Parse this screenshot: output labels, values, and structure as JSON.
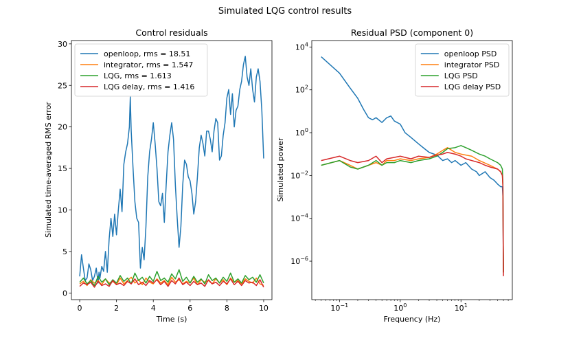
{
  "figure": {
    "suptitle": "Simulated LQG control results"
  },
  "chart_data": [
    {
      "type": "line",
      "title": "Control residuals",
      "xlabel": "Time (s)",
      "ylabel": "Simulated time-averaged RMS error",
      "xlim": [
        -0.45,
        10.45
      ],
      "ylim": [
        -0.8,
        30.4
      ],
      "xticks": [
        0,
        2,
        4,
        6,
        8,
        10
      ],
      "xtick_labels": [
        "0",
        "2",
        "4",
        "6",
        "8",
        "10"
      ],
      "yticks": [
        0,
        5,
        10,
        15,
        20,
        25,
        30
      ],
      "ytick_labels": [
        "0",
        "5",
        "10",
        "15",
        "20",
        "25",
        "30"
      ],
      "grid": false,
      "legend_position": "top-left",
      "colors": [
        "#1f77b4",
        "#ff7f0e",
        "#2ca02c",
        "#d62728"
      ],
      "series": [
        {
          "name": "openloop, rms = 18.51",
          "color": "#1f77b4",
          "x": [
            0,
            0.1,
            0.2,
            0.3,
            0.4,
            0.5,
            0.6,
            0.7,
            0.8,
            0.9,
            1.0,
            1.05,
            1.1,
            1.2,
            1.3,
            1.4,
            1.5,
            1.6,
            1.7,
            1.8,
            1.9,
            2.0,
            2.1,
            2.2,
            2.3,
            2.4,
            2.5,
            2.6,
            2.7,
            2.75,
            2.8,
            2.9,
            3.0,
            3.1,
            3.2,
            3.3,
            3.4,
            3.5,
            3.6,
            3.7,
            3.8,
            3.9,
            4.0,
            4.1,
            4.2,
            4.3,
            4.4,
            4.5,
            4.6,
            4.7,
            4.8,
            4.9,
            5.0,
            5.1,
            5.2,
            5.3,
            5.4,
            5.5,
            5.6,
            5.7,
            5.8,
            5.9,
            6.0,
            6.1,
            6.2,
            6.3,
            6.4,
            6.5,
            6.6,
            6.7,
            6.8,
            6.9,
            7.0,
            7.1,
            7.2,
            7.3,
            7.4,
            7.5,
            7.6,
            7.7,
            7.8,
            7.9,
            8.0,
            8.1,
            8.2,
            8.3,
            8.4,
            8.5,
            8.6,
            8.7,
            8.8,
            8.9,
            9.0,
            9.1,
            9.2,
            9.3,
            9.4,
            9.5,
            9.6,
            9.7,
            9.8,
            9.9,
            10.0
          ],
          "y": [
            2.0,
            4.6,
            3.0,
            1.5,
            1.8,
            3.5,
            2.8,
            1.5,
            2.0,
            3.0,
            1.2,
            2.5,
            1.8,
            3.2,
            2.6,
            5.0,
            2.5,
            6.5,
            9.0,
            6.8,
            9.5,
            7.0,
            10.0,
            12.5,
            9.8,
            15.5,
            17.0,
            18.0,
            20.0,
            23.6,
            19.5,
            15.0,
            11.0,
            9.0,
            8.5,
            3.0,
            5.5,
            4.0,
            8.0,
            14.0,
            17.0,
            18.5,
            20.5,
            18.0,
            15.0,
            11.0,
            10.5,
            12.0,
            8.5,
            13.0,
            17.0,
            19.0,
            20.5,
            18.5,
            13.0,
            9.0,
            5.5,
            8.0,
            13.0,
            16.0,
            15.5,
            14.0,
            13.5,
            12.0,
            9.5,
            11.0,
            14.0,
            17.5,
            19.0,
            18.0,
            16.5,
            19.5,
            19.5,
            18.5,
            17.0,
            19.5,
            21.0,
            20.5,
            16.0,
            16.5,
            19.0,
            20.5,
            23.5,
            24.5,
            21.5,
            24.0,
            20.0,
            22.0,
            22.5,
            24.5,
            25.5,
            27.5,
            28.5,
            26.0,
            25.0,
            27.0,
            24.5,
            23.0,
            26.0,
            27.0,
            25.5,
            22.0,
            16.2
          ]
        },
        {
          "name": "integrator, rms = 1.547",
          "color": "#ff7f0e",
          "x": [
            0,
            0.2,
            0.4,
            0.6,
            0.8,
            1.0,
            1.2,
            1.4,
            1.6,
            1.8,
            2.0,
            2.2,
            2.4,
            2.6,
            2.8,
            3.0,
            3.2,
            3.4,
            3.6,
            3.8,
            4.0,
            4.2,
            4.4,
            4.6,
            4.8,
            5.0,
            5.2,
            5.4,
            5.6,
            5.8,
            6.0,
            6.2,
            6.4,
            6.6,
            6.8,
            7.0,
            7.2,
            7.4,
            7.6,
            7.8,
            8.0,
            8.2,
            8.4,
            8.6,
            8.8,
            9.0,
            9.2,
            9.4,
            9.6,
            9.8,
            10.0
          ],
          "y": [
            1.1,
            1.4,
            0.9,
            1.6,
            1.2,
            1.5,
            1.0,
            1.7,
            1.2,
            1.4,
            1.0,
            1.8,
            1.1,
            1.5,
            1.9,
            1.2,
            1.6,
            1.0,
            1.8,
            1.3,
            1.1,
            1.7,
            1.2,
            1.5,
            1.0,
            1.9,
            1.3,
            1.6,
            1.1,
            1.4,
            1.2,
            1.8,
            1.0,
            1.6,
            1.3,
            1.5,
            1.1,
            1.7,
            1.2,
            1.6,
            1.0,
            1.8,
            1.3,
            1.5,
            1.1,
            1.7,
            1.4,
            1.2,
            1.8,
            1.1,
            0.9
          ]
        },
        {
          "name": "LQG, rms = 1.613",
          "color": "#2ca02c",
          "x": [
            0,
            0.2,
            0.4,
            0.6,
            0.8,
            1.0,
            1.2,
            1.4,
            1.6,
            1.8,
            2.0,
            2.2,
            2.4,
            2.6,
            2.8,
            3.0,
            3.2,
            3.4,
            3.6,
            3.8,
            4.0,
            4.2,
            4.4,
            4.6,
            4.8,
            5.0,
            5.2,
            5.4,
            5.6,
            5.8,
            6.0,
            6.2,
            6.4,
            6.6,
            6.8,
            7.0,
            7.2,
            7.4,
            7.6,
            7.8,
            8.0,
            8.2,
            8.4,
            8.6,
            8.8,
            9.0,
            9.2,
            9.4,
            9.6,
            9.8,
            10.0
          ],
          "y": [
            1.3,
            1.8,
            1.1,
            1.5,
            0.9,
            2.0,
            1.3,
            1.7,
            1.0,
            1.6,
            1.2,
            2.1,
            1.4,
            1.8,
            1.1,
            2.4,
            1.5,
            1.9,
            1.2,
            2.0,
            1.4,
            2.6,
            1.5,
            1.8,
            1.3,
            2.3,
            1.7,
            2.8,
            1.4,
            1.9,
            1.2,
            2.0,
            1.3,
            1.7,
            1.1,
            2.2,
            1.5,
            1.8,
            1.2,
            1.9,
            1.4,
            2.4,
            1.3,
            1.7,
            1.2,
            2.1,
            1.6,
            1.9,
            1.3,
            2.2,
            1.2
          ]
        },
        {
          "name": "LQG delay, rms = 1.416",
          "color": "#d62728",
          "x": [
            0,
            0.2,
            0.4,
            0.6,
            0.8,
            1.0,
            1.2,
            1.4,
            1.6,
            1.8,
            2.0,
            2.2,
            2.4,
            2.6,
            2.8,
            3.0,
            3.2,
            3.4,
            3.6,
            3.8,
            4.0,
            4.2,
            4.4,
            4.6,
            4.8,
            5.0,
            5.2,
            5.4,
            5.6,
            5.8,
            6.0,
            6.2,
            6.4,
            6.6,
            6.8,
            7.0,
            7.2,
            7.4,
            7.6,
            7.8,
            8.0,
            8.2,
            8.4,
            8.6,
            8.8,
            9.0,
            9.2,
            9.4,
            9.6,
            9.8,
            10.0
          ],
          "y": [
            0.8,
            1.2,
            1.0,
            1.3,
            0.7,
            1.4,
            0.9,
            1.1,
            0.8,
            1.5,
            1.0,
            1.2,
            0.9,
            1.4,
            1.1,
            1.7,
            1.0,
            1.3,
            0.9,
            1.5,
            1.2,
            1.6,
            1.0,
            1.4,
            0.8,
            1.5,
            1.1,
            1.8,
            1.0,
            1.3,
            0.9,
            1.4,
            1.0,
            1.2,
            0.8,
            1.6,
            1.1,
            1.3,
            0.9,
            1.4,
            1.1,
            1.7,
            1.0,
            1.4,
            0.9,
            1.5,
            1.2,
            1.3,
            0.9,
            1.6,
            0.7
          ]
        }
      ]
    },
    {
      "type": "line",
      "title": "Residual PSD (component 0)",
      "xlabel": "Frequency (Hz)",
      "ylabel": "Simulated power",
      "x_scale": "log",
      "y_scale": "log",
      "xlim": [
        0.035,
        70
      ],
      "ylim": [
        1.6e-08,
        20000
      ],
      "xticks": [
        0.1,
        1,
        10
      ],
      "xtick_labels": [
        "10^-1",
        "10^0",
        "10^1"
      ],
      "yticks": [
        1e-06,
        0.0001,
        0.01,
        1,
        100,
        10000
      ],
      "ytick_labels": [
        "10^-6",
        "10^-4",
        "10^-2",
        "10^0",
        "10^2",
        "10^4"
      ],
      "grid": false,
      "legend_position": "top-right",
      "colors": [
        "#1f77b4",
        "#ff7f0e",
        "#2ca02c",
        "#d62728"
      ],
      "series": [
        {
          "name": "openloop PSD",
          "color": "#1f77b4",
          "x": [
            0.05,
            0.1,
            0.15,
            0.2,
            0.25,
            0.3,
            0.35,
            0.4,
            0.5,
            0.6,
            0.7,
            0.8,
            1.0,
            1.2,
            1.5,
            2.0,
            2.5,
            3.0,
            4.0,
            5.0,
            6.0,
            7.0,
            8.0,
            10.0,
            12.0,
            15.0,
            18.0,
            20.0,
            25.0,
            30.0,
            35.0,
            40.0,
            45.0,
            48.0,
            49.0,
            49.5,
            50.0
          ],
          "y": [
            3500,
            600,
            120,
            40,
            12,
            5,
            4,
            5,
            3,
            5,
            6,
            3.5,
            2.5,
            1.0,
            0.6,
            0.3,
            0.18,
            0.12,
            0.09,
            0.05,
            0.06,
            0.04,
            0.05,
            0.03,
            0.04,
            0.02,
            0.015,
            0.01,
            0.015,
            0.008,
            0.006,
            0.004,
            0.003,
            0.003,
            0.001,
            1e-05,
            3e-07
          ]
        },
        {
          "name": "integrator PSD",
          "color": "#ff7f0e",
          "x": [
            0.05,
            0.1,
            0.15,
            0.2,
            0.3,
            0.4,
            0.5,
            0.6,
            0.8,
            1.0,
            1.5,
            2.0,
            3.0,
            4.0,
            5.0,
            6.0,
            8.0,
            10.0,
            15.0,
            20.0,
            30.0,
            40.0,
            45.0,
            48.0,
            49.0,
            49.5,
            50.0
          ],
          "y": [
            0.03,
            0.05,
            0.03,
            0.02,
            0.03,
            0.04,
            0.03,
            0.05,
            0.05,
            0.06,
            0.05,
            0.06,
            0.07,
            0.1,
            0.15,
            0.2,
            0.12,
            0.1,
            0.08,
            0.05,
            0.03,
            0.02,
            0.015,
            0.01,
            0.003,
            2e-05,
            3e-07
          ]
        },
        {
          "name": "LQG PSD",
          "color": "#2ca02c",
          "x": [
            0.05,
            0.1,
            0.15,
            0.2,
            0.3,
            0.4,
            0.5,
            0.6,
            0.8,
            1.0,
            1.5,
            2.0,
            3.0,
            4.0,
            5.0,
            6.0,
            8.0,
            10.0,
            12.0,
            15.0,
            20.0,
            25.0,
            30.0,
            40.0,
            45.0,
            48.0,
            49.0,
            49.5,
            50.0
          ],
          "y": [
            0.03,
            0.05,
            0.025,
            0.02,
            0.03,
            0.05,
            0.03,
            0.04,
            0.04,
            0.05,
            0.04,
            0.05,
            0.06,
            0.08,
            0.12,
            0.18,
            0.2,
            0.25,
            0.2,
            0.15,
            0.1,
            0.08,
            0.06,
            0.04,
            0.03,
            0.02,
            0.005,
            3e-05,
            3e-07
          ]
        },
        {
          "name": "LQG delay PSD",
          "color": "#d62728",
          "x": [
            0.05,
            0.1,
            0.15,
            0.2,
            0.3,
            0.4,
            0.5,
            0.6,
            0.8,
            1.0,
            1.5,
            2.0,
            3.0,
            4.0,
            5.0,
            6.0,
            8.0,
            10.0,
            12.0,
            15.0,
            20.0,
            25.0,
            30.0,
            40.0,
            45.0,
            48.0,
            49.0,
            49.5,
            50.0
          ],
          "y": [
            0.05,
            0.08,
            0.05,
            0.04,
            0.05,
            0.08,
            0.04,
            0.06,
            0.07,
            0.08,
            0.06,
            0.08,
            0.07,
            0.09,
            0.1,
            0.12,
            0.1,
            0.08,
            0.06,
            0.05,
            0.04,
            0.03,
            0.025,
            0.02,
            0.015,
            0.01,
            0.003,
            1e-05,
            2e-07
          ]
        }
      ]
    }
  ]
}
